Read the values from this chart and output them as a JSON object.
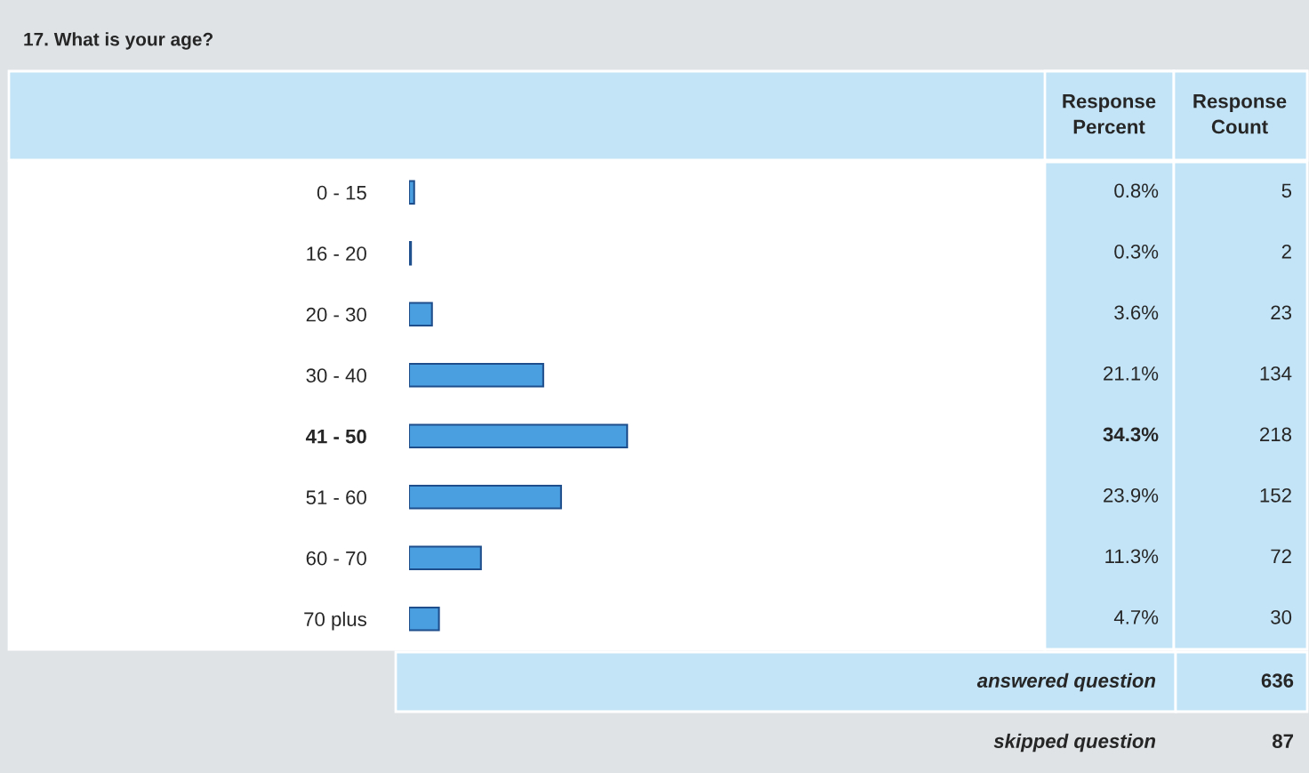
{
  "chart_data": {
    "type": "bar",
    "orientation": "horizontal",
    "title": "17. What is your age?",
    "categories": [
      "0 - 15",
      "16 - 20",
      "20 - 30",
      "30 - 40",
      "41 - 50",
      "51 - 60",
      "60 - 70",
      "70 plus"
    ],
    "series": [
      {
        "name": "Response Percent",
        "color": "#4a9fe0",
        "values": [
          0.8,
          0.3,
          3.6,
          21.1,
          34.3,
          23.9,
          11.3,
          4.7
        ],
        "value_labels": [
          "0.8%",
          "0.3%",
          "3.6%",
          "21.1%",
          "34.3%",
          "23.9%",
          "11.3%",
          "4.7%"
        ]
      }
    ],
    "xlim": [
      0,
      100
    ],
    "tick_labels": "y",
    "annotations": [
      "Response Count",
      "5",
      "2",
      "23",
      "134",
      "218",
      "152",
      "72",
      "30",
      "answered question",
      "636",
      "skipped question",
      "87"
    ]
  }
}
